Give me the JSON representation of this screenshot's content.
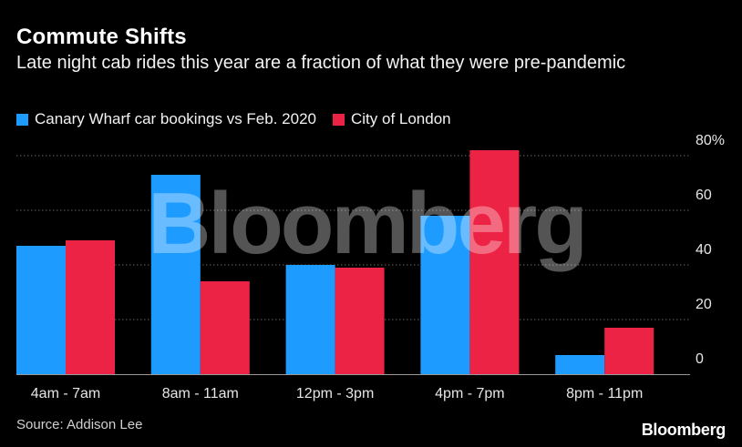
{
  "header": {
    "title": "Commute Shifts",
    "subtitle": "Late night cab rides this year are a fraction of what they were pre-pandemic"
  },
  "colors": {
    "series1": "#1e9bff",
    "series2": "#ec2344",
    "grid": "#666666",
    "axis": "#999999"
  },
  "watermark": "Bloomberg",
  "footer": {
    "source": "Source: Addison Lee",
    "brand": "Bloomberg"
  },
  "chart_data": {
    "type": "bar",
    "title": "Commute Shifts",
    "categories": [
      "4am - 7am",
      "8am - 11am",
      "12pm - 3pm",
      "4pm - 7pm",
      "8pm - 11pm"
    ],
    "series": [
      {
        "name": "Canary Wharf car bookings vs Feb. 2020",
        "values": [
          47,
          73,
          40,
          58,
          7
        ]
      },
      {
        "name": "City of London",
        "values": [
          49,
          34,
          39,
          82,
          17
        ]
      }
    ],
    "yticks": [
      0,
      20,
      40,
      60,
      80
    ],
    "ytick_labels": [
      "0",
      "20",
      "40",
      "60",
      "80%"
    ],
    "ylim": [
      0,
      80
    ],
    "xlabel": "",
    "ylabel": "",
    "grid": true,
    "legend": "top-left"
  }
}
